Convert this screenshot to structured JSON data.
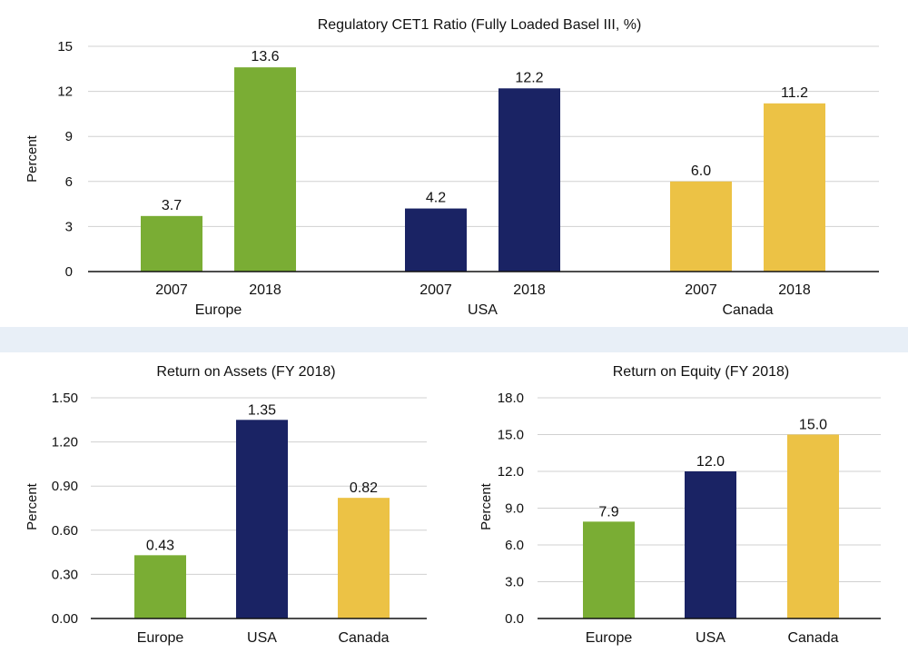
{
  "colors": {
    "green": "#7aad34",
    "navy": "#1a2364",
    "yellow": "#ecc245"
  },
  "chart_data": [
    {
      "type": "bar",
      "title": "Regulatory CET1 Ratio (Fully Loaded Basel III, %)",
      "ylabel": "Percent",
      "ylim": [
        0,
        15
      ],
      "yticks": [
        "0",
        "3",
        "6",
        "9",
        "12",
        "15"
      ],
      "groups": [
        {
          "name": "Europe",
          "categories": [
            "2007",
            "2018"
          ],
          "values": [
            3.7,
            13.6
          ],
          "labels": [
            "3.7",
            "13.6"
          ],
          "color": "green"
        },
        {
          "name": "USA",
          "categories": [
            "2007",
            "2018"
          ],
          "values": [
            4.2,
            12.2
          ],
          "labels": [
            "4.2",
            "12.2"
          ],
          "color": "navy"
        },
        {
          "name": "Canada",
          "categories": [
            "2007",
            "2018"
          ],
          "values": [
            6.0,
            11.2
          ],
          "labels": [
            "6.0",
            "11.2"
          ],
          "color": "yellow"
        }
      ],
      "grid": true
    },
    {
      "type": "bar",
      "title": "Return on Assets (FY 2018)",
      "ylabel": "Percent",
      "ylim": [
        0,
        1.5
      ],
      "yticks": [
        "0.00",
        "0.30",
        "0.60",
        "0.90",
        "1.20",
        "1.50"
      ],
      "categories": [
        "Europe",
        "USA",
        "Canada"
      ],
      "values": [
        0.43,
        1.35,
        0.82
      ],
      "labels": [
        "0.43",
        "1.35",
        "0.82"
      ],
      "colors": [
        "green",
        "navy",
        "yellow"
      ],
      "grid": true
    },
    {
      "type": "bar",
      "title": "Return on Equity (FY 2018)",
      "ylabel": "Percent",
      "ylim": [
        0,
        18
      ],
      "yticks": [
        "0.0",
        "3.0",
        "6.0",
        "9.0",
        "12.0",
        "15.0",
        "18.0"
      ],
      "categories": [
        "Europe",
        "USA",
        "Canada"
      ],
      "values": [
        7.9,
        12.0,
        15.0
      ],
      "labels": [
        "7.9",
        "12.0",
        "15.0"
      ],
      "colors": [
        "green",
        "navy",
        "yellow"
      ],
      "grid": true
    }
  ]
}
